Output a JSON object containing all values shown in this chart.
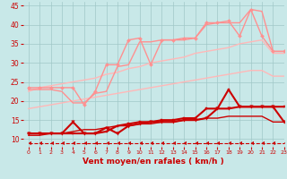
{
  "title": "",
  "xlabel": "Vent moyen/en rafales ( km/h )",
  "ylabel": "",
  "bg_color": "#c8e8e8",
  "grid_color": "#a0c8c8",
  "xlim": [
    -0.5,
    23
  ],
  "ylim": [
    8,
    46
  ],
  "yticks": [
    10,
    15,
    20,
    25,
    30,
    35,
    40,
    45
  ],
  "xticks": [
    0,
    1,
    2,
    3,
    4,
    5,
    6,
    7,
    8,
    9,
    10,
    11,
    12,
    13,
    14,
    15,
    16,
    17,
    18,
    19,
    20,
    21,
    22,
    23
  ],
  "series": [
    {
      "x": [
        0,
        1,
        2,
        3,
        4,
        5,
        6,
        7,
        8,
        9,
        10,
        11,
        12,
        13,
        14,
        15,
        16,
        17,
        18,
        19,
        20,
        21,
        22,
        23
      ],
      "y": [
        23.5,
        23.5,
        23.5,
        23.5,
        23.5,
        19.0,
        22.5,
        29.5,
        29.5,
        36.0,
        36.5,
        29.5,
        36.0,
        36.0,
        36.5,
        36.5,
        40.5,
        40.5,
        41.0,
        37.0,
        44.0,
        37.0,
        33.0,
        33.0
      ],
      "color": "#ff9090",
      "lw": 1.0,
      "marker": "D",
      "ms": 2.0,
      "zorder": 4
    },
    {
      "x": [
        0,
        1,
        2,
        3,
        4,
        5,
        6,
        7,
        8,
        9,
        10,
        11,
        12,
        13,
        14,
        15,
        16,
        17,
        18,
        19,
        20,
        21,
        22,
        23
      ],
      "y": [
        23.0,
        23.0,
        23.0,
        22.5,
        19.5,
        19.5,
        22.0,
        22.5,
        29.0,
        29.5,
        35.5,
        35.5,
        36.0,
        36.0,
        36.0,
        36.5,
        40.0,
        40.5,
        40.5,
        40.5,
        44.0,
        43.5,
        33.0,
        33.0
      ],
      "color": "#ff9090",
      "lw": 1.0,
      "marker": null,
      "ms": 0,
      "zorder": 3
    },
    {
      "x": [
        0,
        1,
        2,
        3,
        4,
        5,
        6,
        7,
        8,
        9,
        10,
        11,
        12,
        13,
        14,
        15,
        16,
        17,
        18,
        19,
        20,
        21,
        22,
        23
      ],
      "y": [
        22.5,
        23.5,
        24.0,
        24.5,
        25.0,
        25.5,
        26.0,
        27.0,
        27.5,
        28.5,
        29.0,
        30.0,
        30.5,
        31.0,
        31.5,
        32.5,
        33.0,
        33.5,
        34.0,
        35.0,
        35.5,
        36.0,
        32.5,
        32.5
      ],
      "color": "#ffb8b8",
      "lw": 1.0,
      "marker": null,
      "ms": 0,
      "zorder": 2
    },
    {
      "x": [
        0,
        1,
        2,
        3,
        4,
        5,
        6,
        7,
        8,
        9,
        10,
        11,
        12,
        13,
        14,
        15,
        16,
        17,
        18,
        19,
        20,
        21,
        22,
        23
      ],
      "y": [
        18.0,
        18.5,
        19.0,
        19.5,
        20.0,
        20.5,
        21.0,
        21.5,
        22.0,
        22.5,
        23.0,
        23.5,
        24.0,
        24.5,
        25.0,
        25.5,
        26.0,
        26.5,
        27.0,
        27.5,
        28.0,
        28.0,
        26.5,
        26.5
      ],
      "color": "#ffb8b8",
      "lw": 1.0,
      "marker": null,
      "ms": 0,
      "zorder": 2
    },
    {
      "x": [
        0,
        1,
        2,
        3,
        4,
        5,
        6,
        7,
        8,
        9,
        10,
        11,
        12,
        13,
        14,
        15,
        16,
        17,
        18,
        19,
        20,
        21,
        22,
        23
      ],
      "y": [
        11.5,
        11.5,
        11.5,
        11.5,
        11.5,
        11.5,
        11.5,
        12.0,
        13.5,
        14.0,
        14.5,
        14.5,
        15.0,
        15.0,
        15.5,
        15.5,
        18.0,
        18.0,
        23.0,
        18.5,
        18.5,
        18.5,
        18.5,
        18.5
      ],
      "color": "#cc0000",
      "lw": 1.5,
      "marker": "s",
      "ms": 2.0,
      "zorder": 6
    },
    {
      "x": [
        0,
        1,
        2,
        3,
        4,
        5,
        6,
        7,
        8,
        9,
        10,
        11,
        12,
        13,
        14,
        15,
        16,
        17,
        18,
        19,
        20,
        21,
        22,
        23
      ],
      "y": [
        11.5,
        11.5,
        11.5,
        11.5,
        14.5,
        11.5,
        11.5,
        13.0,
        11.5,
        13.5,
        14.0,
        14.5,
        14.5,
        14.5,
        15.0,
        15.0,
        15.5,
        18.0,
        18.0,
        18.5,
        18.5,
        18.5,
        18.5,
        14.5
      ],
      "color": "#cc0000",
      "lw": 1.5,
      "marker": "v",
      "ms": 2.5,
      "zorder": 6
    },
    {
      "x": [
        0,
        1,
        2,
        3,
        4,
        5,
        6,
        7,
        8,
        9,
        10,
        11,
        12,
        13,
        14,
        15,
        16,
        17,
        18,
        19,
        20,
        21,
        22,
        23
      ],
      "y": [
        11.0,
        11.0,
        11.5,
        11.5,
        12.0,
        12.5,
        12.5,
        13.0,
        13.5,
        13.5,
        14.0,
        14.0,
        14.5,
        14.5,
        15.0,
        15.0,
        15.5,
        15.5,
        16.0,
        16.0,
        16.0,
        16.0,
        14.5,
        14.5
      ],
      "color": "#cc0000",
      "lw": 1.0,
      "marker": null,
      "ms": 0,
      "zorder": 5
    },
    {
      "x": [
        0,
        1,
        2,
        3,
        4,
        5,
        6,
        7,
        8,
        9,
        10,
        11,
        12,
        13,
        14,
        15,
        16,
        17,
        18,
        19,
        20,
        21,
        22,
        23
      ],
      "y": [
        9.0,
        9.0,
        9.0,
        9.0,
        9.0,
        9.0,
        9.0,
        9.0,
        9.0,
        9.0,
        9.0,
        9.0,
        9.0,
        9.0,
        9.0,
        9.0,
        9.0,
        9.0,
        9.0,
        9.0,
        9.0,
        9.0,
        9.0,
        9.0
      ],
      "color": "#cc0000",
      "lw": 0.8,
      "marker": 4,
      "ms": 2.5,
      "zorder": 4,
      "linestyle": "--"
    }
  ]
}
